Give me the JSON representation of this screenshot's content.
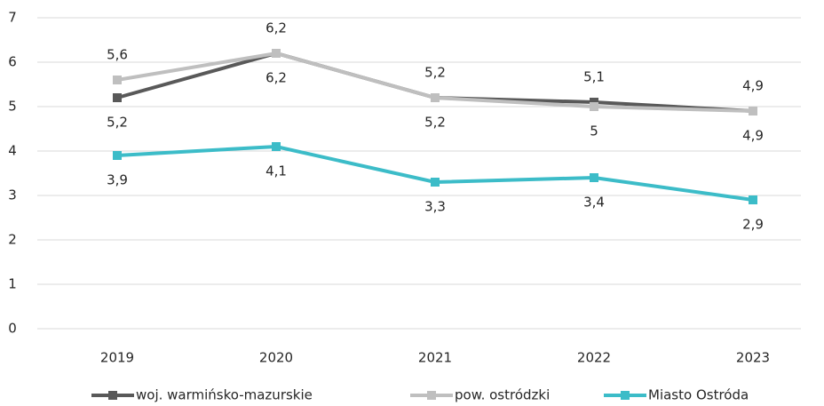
{
  "chart_data": {
    "type": "line",
    "categories": [
      "2019",
      "2020",
      "2021",
      "2022",
      "2023"
    ],
    "series": [
      {
        "name": "woj. warmińsko-mazurskie",
        "color": "#595959",
        "values": [
          5.2,
          6.2,
          5.2,
          5.1,
          4.9
        ],
        "value_labels": [
          "5,2",
          "6,2",
          "5,2",
          "5,1",
          "4,9"
        ]
      },
      {
        "name": "pow. ostródzki",
        "color": "#bfbfbf",
        "values": [
          5.6,
          6.2,
          5.2,
          5.0,
          4.9
        ],
        "value_labels": [
          "5,6",
          "6,2",
          "5,2",
          "5",
          "4,9"
        ]
      },
      {
        "name": "Miasto Ostróda",
        "color": "#3cbcc8",
        "values": [
          3.9,
          4.1,
          3.3,
          3.4,
          2.9
        ],
        "value_labels": [
          "3,9",
          "4,1",
          "3,3",
          "3,4",
          "2,9"
        ]
      }
    ],
    "ylim": [
      0,
      7
    ],
    "yticks": [
      0,
      1,
      2,
      3,
      4,
      5,
      6,
      7
    ],
    "grid": true,
    "legend": "bottom"
  }
}
